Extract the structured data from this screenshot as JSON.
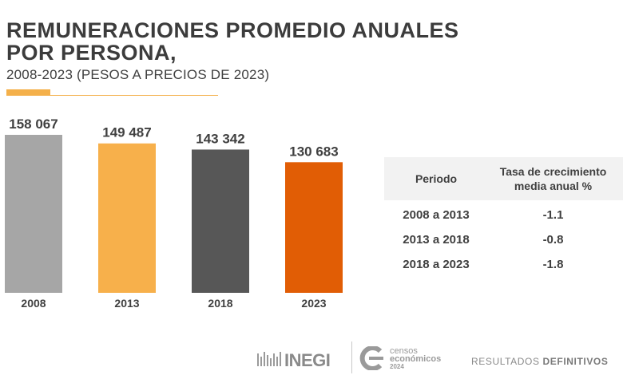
{
  "header": {
    "title_line1": "REMUNERACIONES PROMEDIO ANUALES",
    "title_line2": "POR PERSONA,",
    "subtitle": "2008-2023 (PESOS A PRECIOS DE 2023)"
  },
  "chart_data": {
    "type": "bar",
    "categories": [
      "2008",
      "2013",
      "2018",
      "2023"
    ],
    "values": [
      158067,
      149487,
      143342,
      130683
    ],
    "value_labels": [
      "158 067",
      "149 487",
      "143 342",
      "130 683"
    ],
    "colors": [
      "#a6a6a6",
      "#f7b04b",
      "#575757",
      "#e15d05"
    ],
    "ylim": [
      0,
      158067
    ],
    "grid": false,
    "legend": "none"
  },
  "table": {
    "header": {
      "period": "Periodo",
      "rate_line1": "Tasa de crecimiento",
      "rate_line2": "media anual %"
    },
    "rows": [
      {
        "period": "2008 a 2013",
        "rate": "-1.1"
      },
      {
        "period": "2013 a 2018",
        "rate": "-0.8"
      },
      {
        "period": "2018 a 2023",
        "rate": "-1.8"
      }
    ]
  },
  "footer": {
    "inegi": "INEGI",
    "censos_line1": "censos",
    "censos_line2": "económicos",
    "censos_year": "2024",
    "result_prefix": "RESULTADOS ",
    "result_bold": "DEFINITIVOS"
  }
}
